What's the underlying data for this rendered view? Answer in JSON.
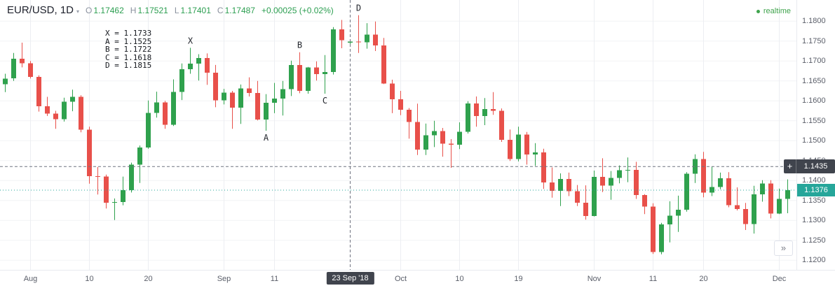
{
  "header": {
    "symbol": "EUR/USD, 1D",
    "o_label": "O",
    "o_value": "1.17462",
    "h_label": "H",
    "h_value": "1.17521",
    "l_label": "L",
    "l_value": "1.17401",
    "c_label": "C",
    "c_value": "1.17487",
    "change": "+0.00025 (+0.02%)"
  },
  "realtime_label": "realtime",
  "icons": {
    "plus": "+",
    "caret_down": "▾",
    "chevron_right": "»"
  },
  "annotations": {
    "legend": [
      "X = 1.1733",
      "A = 1.1525",
      "B = 1.1722",
      "C = 1.1618",
      "D = 1.1815"
    ]
  },
  "chart_data": {
    "type": "candlestick",
    "title": "EUR/USD, 1D",
    "ylim": [
      1.1176,
      1.1853
    ],
    "grid": true,
    "colors": {
      "up": "#2fa14d",
      "down": "#e8504a",
      "accent": "#26a69a",
      "crosshair": "#6f7380",
      "badge_dark": "#40444d",
      "grid_h": "#f2f3f6",
      "grid_v": "#eceef2"
    },
    "price_ticks": [
      "1.1800",
      "1.1750",
      "1.1700",
      "1.1650",
      "1.1600",
      "1.1550",
      "1.1500",
      "1.1450",
      "1.1400",
      "1.1350",
      "1.1300",
      "1.1250",
      "1.1200"
    ],
    "time_ticks": [
      {
        "label": "Aug",
        "i": 3
      },
      {
        "label": "10",
        "i": 10
      },
      {
        "label": "20",
        "i": 17
      },
      {
        "label": "Sep",
        "i": 26
      },
      {
        "label": "11",
        "i": 32
      },
      {
        "label": "Oct",
        "i": 47
      },
      {
        "label": "10",
        "i": 54
      },
      {
        "label": "19",
        "i": 61
      },
      {
        "label": "Nov",
        "i": 70
      },
      {
        "label": "11",
        "i": 77
      },
      {
        "label": "20",
        "i": 83
      },
      {
        "label": "Dec",
        "i": 92
      }
    ],
    "crosshair": {
      "index": 41,
      "price": 1.1435,
      "price_label": "1.1435",
      "date_label": "23 Sep '18"
    },
    "last_price": 1.1376,
    "last_price_label": "1.1376",
    "markers": [
      {
        "label": "X",
        "i": 22,
        "p": 1.1733,
        "side": "above"
      },
      {
        "label": "A",
        "i": 31,
        "p": 1.1525,
        "side": "below"
      },
      {
        "label": "B",
        "i": 35,
        "p": 1.1722,
        "side": "above"
      },
      {
        "label": "C",
        "i": 38,
        "p": 1.1618,
        "side": "below"
      },
      {
        "label": "D",
        "i": 42,
        "p": 1.1815,
        "side": "above"
      }
    ],
    "candles": [
      [
        "Jul 27",
        1.1642,
        1.1668,
        1.1622,
        1.1656
      ],
      [
        "Jul 30",
        1.1657,
        1.172,
        1.165,
        1.1706
      ],
      [
        "Jul 31",
        1.1706,
        1.1746,
        1.1684,
        1.1694
      ],
      [
        "Aug 1",
        1.1694,
        1.17,
        1.1656,
        1.166
      ],
      [
        "Aug 2",
        1.166,
        1.1664,
        1.1573,
        1.1586
      ],
      [
        "Aug 3",
        1.1586,
        1.161,
        1.1562,
        1.1568
      ],
      [
        "Aug 6",
        1.1568,
        1.1575,
        1.153,
        1.1554
      ],
      [
        "Aug 7",
        1.1554,
        1.1608,
        1.1548,
        1.1598
      ],
      [
        "Aug 8",
        1.1598,
        1.1628,
        1.1574,
        1.161
      ],
      [
        "Aug 9",
        1.161,
        1.1614,
        1.1521,
        1.1528
      ],
      [
        "Aug 10",
        1.1528,
        1.1535,
        1.1392,
        1.1411
      ],
      [
        "Aug 13",
        1.1411,
        1.1434,
        1.1365,
        1.141
      ],
      [
        "Aug 14",
        1.141,
        1.1415,
        1.133,
        1.1344
      ],
      [
        "Aug 15",
        1.1344,
        1.1355,
        1.1301,
        1.1346
      ],
      [
        "Aug 16",
        1.1346,
        1.141,
        1.1338,
        1.1376
      ],
      [
        "Aug 17",
        1.1376,
        1.1445,
        1.137,
        1.144
      ],
      [
        "Aug 20",
        1.144,
        1.1488,
        1.1394,
        1.1483
      ],
      [
        "Aug 21",
        1.1483,
        1.1601,
        1.148,
        1.157
      ],
      [
        "Aug 22",
        1.157,
        1.1623,
        1.1558,
        1.1596
      ],
      [
        "Aug 23",
        1.1596,
        1.16,
        1.153,
        1.154
      ],
      [
        "Aug 24",
        1.154,
        1.1654,
        1.1537,
        1.1622
      ],
      [
        "Aug 27",
        1.1622,
        1.1694,
        1.1602,
        1.1679
      ],
      [
        "Aug 28",
        1.1679,
        1.1733,
        1.1668,
        1.1693
      ],
      [
        "Aug 29",
        1.1693,
        1.1717,
        1.1651,
        1.1707
      ],
      [
        "Aug 30",
        1.1707,
        1.1719,
        1.164,
        1.1671
      ],
      [
        "Aug 31",
        1.1671,
        1.169,
        1.1584,
        1.1601
      ],
      [
        "Sep 3",
        1.1601,
        1.163,
        1.1591,
        1.1621
      ],
      [
        "Sep 4",
        1.1621,
        1.1625,
        1.153,
        1.1583
      ],
      [
        "Sep 5",
        1.1583,
        1.1641,
        1.1542,
        1.1631
      ],
      [
        "Sep 6",
        1.1631,
        1.1659,
        1.1611,
        1.162
      ],
      [
        "Sep 7",
        1.162,
        1.165,
        1.1551,
        1.1553
      ],
      [
        "Sep 10",
        1.1553,
        1.1617,
        1.1525,
        1.1595
      ],
      [
        "Sep 11",
        1.1595,
        1.1645,
        1.1569,
        1.1606
      ],
      [
        "Sep 12",
        1.1606,
        1.165,
        1.1563,
        1.1629
      ],
      [
        "Sep 13",
        1.1629,
        1.1701,
        1.1612,
        1.169
      ],
      [
        "Sep 14",
        1.169,
        1.1722,
        1.1619,
        1.1625
      ],
      [
        "Sep 17",
        1.1625,
        1.1685,
        1.1618,
        1.1684
      ],
      [
        "Sep 18",
        1.1684,
        1.1699,
        1.1651,
        1.1667
      ],
      [
        "Sep 19",
        1.1667,
        1.1715,
        1.1618,
        1.1672
      ],
      [
        "Sep 20",
        1.1672,
        1.1785,
        1.1666,
        1.1779
      ],
      [
        "Sep 21",
        1.1779,
        1.1803,
        1.1732,
        1.1752
      ],
      [
        "Sep 23",
        1.17462,
        1.17521,
        1.17401,
        1.17487
      ],
      [
        "Sep 24",
        1.1749,
        1.1815,
        1.172,
        1.1747
      ],
      [
        "Sep 25",
        1.1747,
        1.1795,
        1.1731,
        1.1766
      ],
      [
        "Sep 26",
        1.1766,
        1.1799,
        1.1725,
        1.1739
      ],
      [
        "Sep 27",
        1.1739,
        1.1758,
        1.1642,
        1.1643
      ],
      [
        "Sep 28",
        1.1643,
        1.1653,
        1.1569,
        1.1604
      ],
      [
        "Oct 1",
        1.1604,
        1.1625,
        1.1564,
        1.1578
      ],
      [
        "Oct 2",
        1.1578,
        1.1582,
        1.1505,
        1.1547
      ],
      [
        "Oct 3",
        1.1547,
        1.1593,
        1.1464,
        1.1478
      ],
      [
        "Oct 4",
        1.1478,
        1.1543,
        1.1464,
        1.1514
      ],
      [
        "Oct 5",
        1.1514,
        1.155,
        1.1484,
        1.1524
      ],
      [
        "Oct 8",
        1.1524,
        1.1532,
        1.146,
        1.1493
      ],
      [
        "Oct 9",
        1.1493,
        1.1504,
        1.1432,
        1.149
      ],
      [
        "Oct 10",
        1.149,
        1.1546,
        1.1479,
        1.1522
      ],
      [
        "Oct 11",
        1.1522,
        1.1599,
        1.1518,
        1.1593
      ],
      [
        "Oct 12",
        1.1593,
        1.1611,
        1.1535,
        1.1562
      ],
      [
        "Oct 15",
        1.1562,
        1.1607,
        1.1539,
        1.1579
      ],
      [
        "Oct 16",
        1.1579,
        1.1622,
        1.1565,
        1.1575
      ],
      [
        "Oct 17",
        1.1575,
        1.1581,
        1.1497,
        1.1502
      ],
      [
        "Oct 18",
        1.1502,
        1.1528,
        1.1449,
        1.1454
      ],
      [
        "Oct 19",
        1.1454,
        1.1535,
        1.1448,
        1.1515
      ],
      [
        "Oct 22",
        1.1515,
        1.1522,
        1.144,
        1.1465
      ],
      [
        "Oct 23",
        1.1465,
        1.1494,
        1.1437,
        1.1471
      ],
      [
        "Oct 24",
        1.1471,
        1.148,
        1.1379,
        1.1395
      ],
      [
        "Oct 25",
        1.1395,
        1.1433,
        1.1357,
        1.1374
      ],
      [
        "Oct 26",
        1.1374,
        1.1418,
        1.1336,
        1.1404
      ],
      [
        "Oct 29",
        1.1404,
        1.142,
        1.1361,
        1.1373
      ],
      [
        "Oct 30",
        1.1373,
        1.1389,
        1.1336,
        1.1344
      ],
      [
        "Oct 31",
        1.1344,
        1.1388,
        1.1302,
        1.1311
      ],
      [
        "Nov 1",
        1.1311,
        1.1425,
        1.131,
        1.1409
      ],
      [
        "Nov 2",
        1.1409,
        1.1456,
        1.1371,
        1.1387
      ],
      [
        "Nov 5",
        1.1387,
        1.1424,
        1.1352,
        1.1407
      ],
      [
        "Nov 6",
        1.1407,
        1.1438,
        1.1393,
        1.1426
      ],
      [
        "Nov 7",
        1.1426,
        1.1458,
        1.1396,
        1.1427
      ],
      [
        "Nov 8",
        1.1427,
        1.1447,
        1.1354,
        1.1364
      ],
      [
        "Nov 9",
        1.1364,
        1.1366,
        1.1316,
        1.1335
      ],
      [
        "Nov 12",
        1.1335,
        1.1343,
        1.1216,
        1.1221
      ],
      [
        "Nov 13",
        1.1221,
        1.1294,
        1.1215,
        1.129
      ],
      [
        "Nov 14",
        1.129,
        1.1348,
        1.1245,
        1.1312
      ],
      [
        "Nov 15",
        1.1312,
        1.1362,
        1.1271,
        1.1327
      ],
      [
        "Nov 16",
        1.1327,
        1.1421,
        1.1322,
        1.1417
      ],
      [
        "Nov 19",
        1.1417,
        1.1466,
        1.1394,
        1.1454
      ],
      [
        "Nov 20",
        1.1454,
        1.1472,
        1.1358,
        1.137
      ],
      [
        "Nov 21",
        1.137,
        1.1435,
        1.1361,
        1.1384
      ],
      [
        "Nov 22",
        1.1384,
        1.142,
        1.1378,
        1.1406
      ],
      [
        "Nov 23",
        1.1406,
        1.1421,
        1.1333,
        1.1338
      ],
      [
        "Nov 26",
        1.1338,
        1.1383,
        1.1325,
        1.1329
      ],
      [
        "Nov 27",
        1.1329,
        1.1344,
        1.1276,
        1.1291
      ],
      [
        "Nov 28",
        1.1291,
        1.1387,
        1.1267,
        1.1365
      ],
      [
        "Nov 29",
        1.1365,
        1.1401,
        1.1347,
        1.1393
      ],
      [
        "Nov 30",
        1.1393,
        1.1401,
        1.1305,
        1.1317
      ],
      [
        "Dec 3",
        1.1317,
        1.138,
        1.1316,
        1.1354
      ],
      [
        "Dec 4",
        1.1354,
        1.1403,
        1.1318,
        1.1376
      ]
    ]
  }
}
